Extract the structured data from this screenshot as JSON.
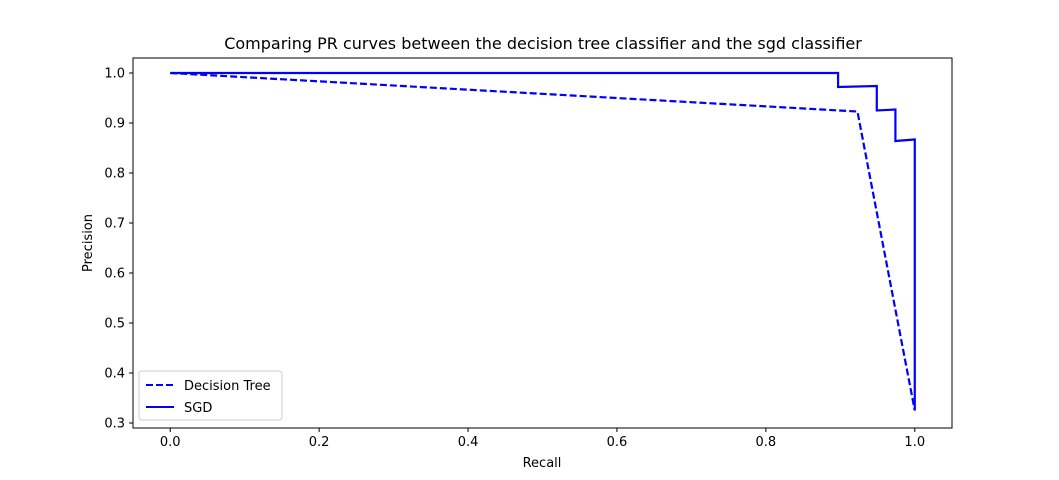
{
  "chart_data": {
    "type": "line",
    "title": "Comparing PR curves between the decision tree classifier and the sgd classifier",
    "xlabel": "Recall",
    "ylabel": "Precision",
    "xlim": [
      -0.05,
      1.05
    ],
    "ylim": [
      0.29,
      1.03
    ],
    "xticks": [
      0.0,
      0.2,
      0.4,
      0.6,
      0.8,
      1.0
    ],
    "xtick_labels": [
      "0.0",
      "0.2",
      "0.4",
      "0.6",
      "0.8",
      "1.0"
    ],
    "yticks": [
      0.3,
      0.4,
      0.5,
      0.6,
      0.7,
      0.8,
      0.9,
      1.0
    ],
    "ytick_labels": [
      "0.3",
      "0.4",
      "0.5",
      "0.6",
      "0.7",
      "0.8",
      "0.9",
      "1.0"
    ],
    "grid": false,
    "legend": {
      "placement": "lower-left"
    },
    "series": [
      {
        "name": "Decision Tree",
        "color": "#0000ff",
        "linestyle": "dashed",
        "x": [
          0.0,
          0.923,
          1.0
        ],
        "y": [
          1.0,
          0.923,
          0.325
        ]
      },
      {
        "name": "SGD",
        "color": "#0000ff",
        "linestyle": "solid",
        "x": [
          0.0,
          0.897,
          0.897,
          0.949,
          0.949,
          0.974,
          0.974,
          1.0,
          1.0
        ],
        "y": [
          1.0,
          1.0,
          0.972,
          0.974,
          0.925,
          0.927,
          0.864,
          0.867,
          0.325
        ]
      }
    ]
  }
}
